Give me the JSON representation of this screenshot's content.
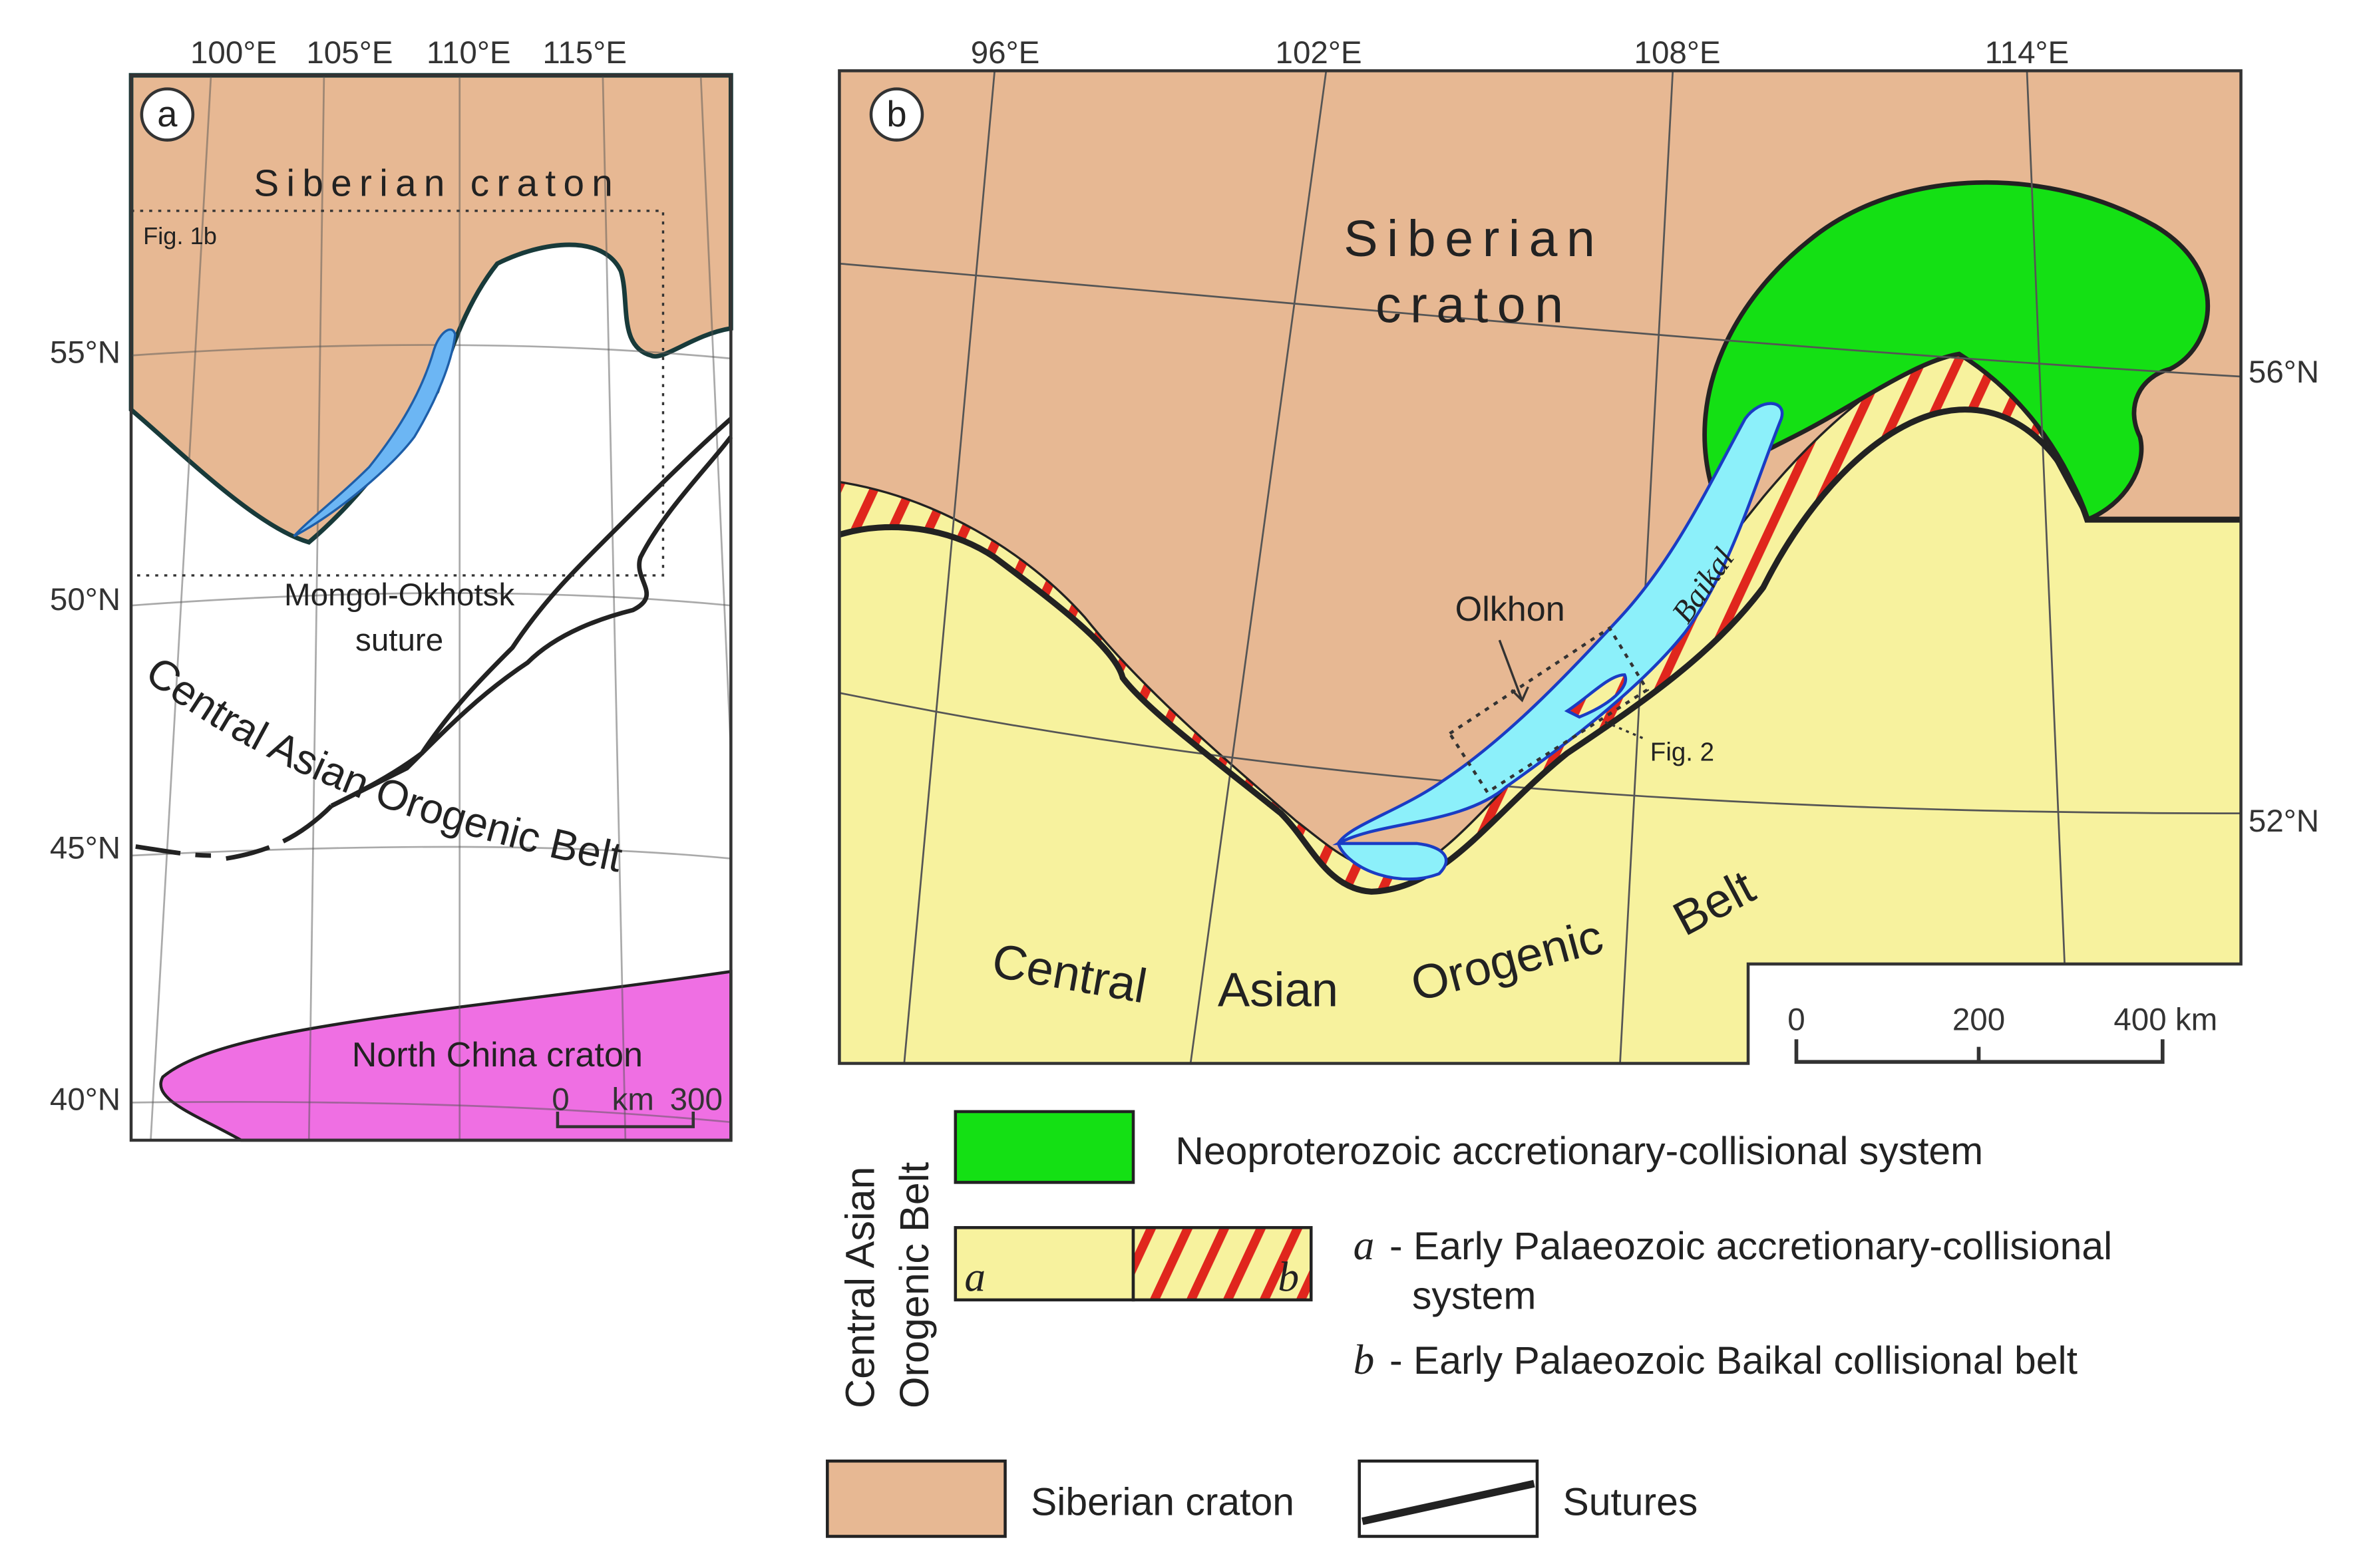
{
  "panel_a": {
    "label": "a",
    "longitudes": [
      "100°E",
      "105°E",
      "110°E",
      "115°E"
    ],
    "latitudes": [
      "55°N",
      "50°N",
      "45°N",
      "40°N"
    ],
    "siberian_craton": "Siberian craton",
    "inset_label": "Fig. 1b",
    "suture": [
      "Mongol-Okhotsk",
      "suture"
    ],
    "belt": "Central Asian Orogenic Belt",
    "north_china": "North China craton",
    "scale": [
      "0",
      "km",
      "300"
    ]
  },
  "panel_b": {
    "label": "b",
    "longitudes": [
      "96°E",
      "102°E",
      "108°E",
      "114°E"
    ],
    "latitudes": [
      "56°N",
      "52°N"
    ],
    "siberian_craton": [
      "Siberian",
      "craton"
    ],
    "olkhon": "Olkhon",
    "baikal": "Baikal",
    "inset_label": "Fig. 2",
    "belt": [
      "Central",
      "Asian",
      "Orogenic",
      "Belt"
    ],
    "scale": [
      "0",
      "200",
      "400 km"
    ]
  },
  "legend": {
    "group_title": [
      "Central Asian",
      "Orogenic Belt"
    ],
    "neoproterozoic": "Neoproterozoic accretionary-collisional system",
    "swatch_a": "a",
    "swatch_b": "b",
    "item_a": {
      "key": "a",
      "text": [
        "- Early Palaeozoic accretionary-collisional",
        "system"
      ]
    },
    "item_b": {
      "key": "b",
      "text": "- Early Palaeozoic Baikal collisional belt"
    },
    "siberian_craton": "Siberian craton",
    "sutures": "Sutures"
  }
}
